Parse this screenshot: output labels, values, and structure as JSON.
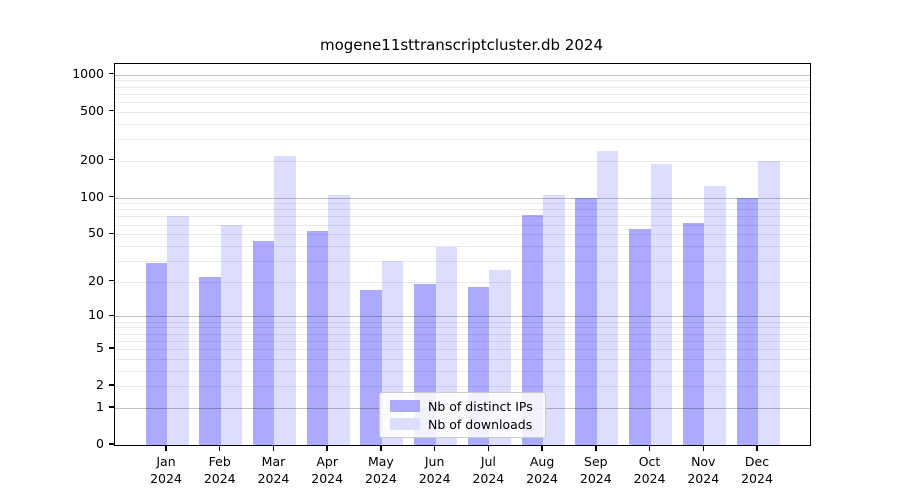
{
  "title": "mogene11sttranscriptcluster.db 2024",
  "legend": {
    "ips_label": "Nb of distinct IPs",
    "downloads_label": "Nb of downloads"
  },
  "colors": {
    "ips": "#aaaaff",
    "downloads": "#ddddff"
  },
  "y_axis": {
    "tick_values": [
      0,
      1,
      2,
      5,
      10,
      20,
      50,
      100,
      200,
      500,
      1000
    ]
  },
  "x_axis": {
    "year": "2024",
    "months": [
      "Jan",
      "Feb",
      "Mar",
      "Apr",
      "May",
      "Jun",
      "Jul",
      "Aug",
      "Sep",
      "Oct",
      "Nov",
      "Dec"
    ]
  },
  "chart_data": {
    "type": "bar",
    "title": "mogene11sttranscriptcluster.db 2024",
    "categories": [
      "Jan 2024",
      "Feb 2024",
      "Mar 2024",
      "Apr 2024",
      "May 2024",
      "Jun 2024",
      "Jul 2024",
      "Aug 2024",
      "Sep 2024",
      "Oct 2024",
      "Nov 2024",
      "Dec 2024"
    ],
    "series": [
      {
        "name": "Nb of distinct IPs",
        "color": "#aaaaff",
        "values": [
          29,
          22,
          44,
          53,
          17,
          19,
          18,
          72,
          100,
          55,
          62,
          100
        ]
      },
      {
        "name": "Nb of downloads",
        "color": "#ddddff",
        "values": [
          71,
          60,
          220,
          105,
          30,
          39,
          25,
          106,
          240,
          188,
          125,
          200
        ]
      }
    ],
    "xlabel": "",
    "ylabel": "",
    "yscale": "log10(value+1), linear segment from 0 to 1",
    "yticks": [
      0,
      1,
      2,
      5,
      10,
      20,
      50,
      100,
      200,
      500,
      1000
    ],
    "ylim": [
      0,
      1220
    ],
    "grid": "horizontal, minor log divisions, drawn over bars",
    "legend_position": "lower center"
  }
}
